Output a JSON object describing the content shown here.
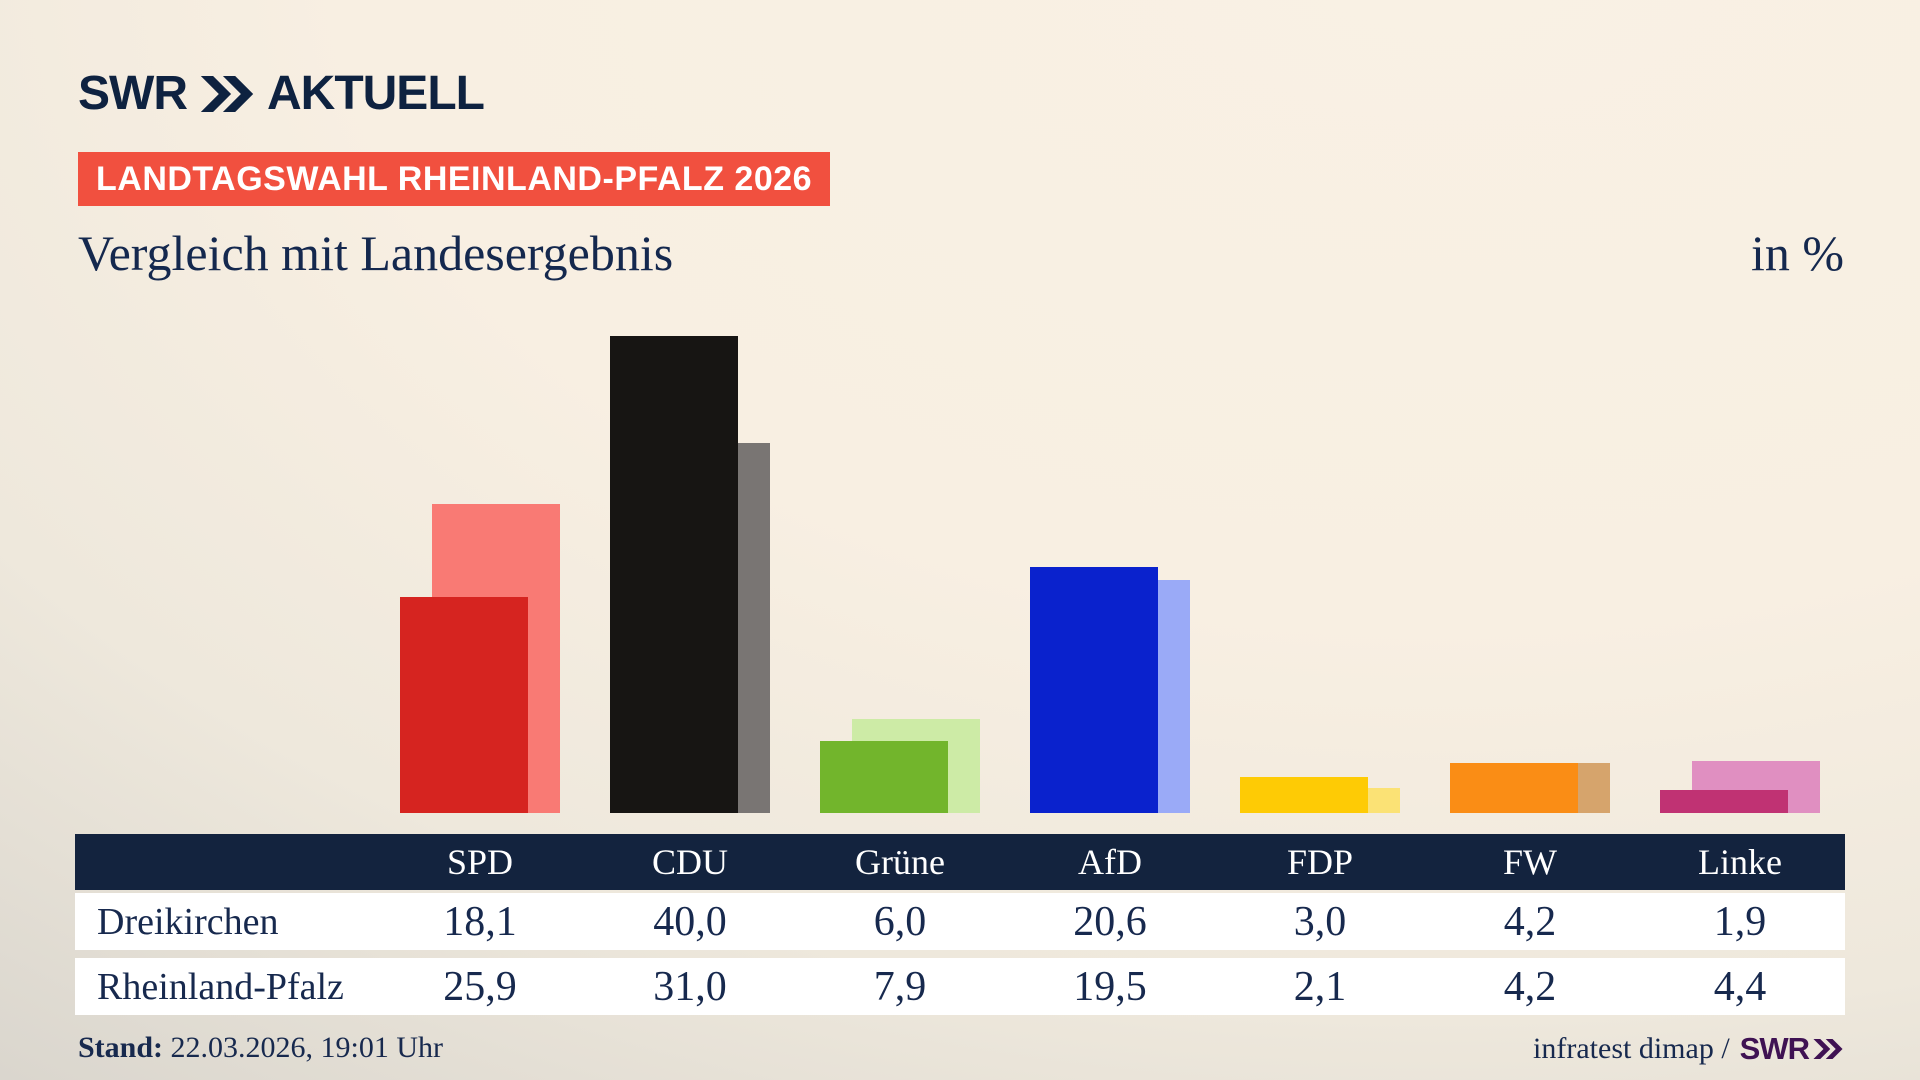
{
  "logo": {
    "swr": "SWR",
    "aktuell": "AKTUELL"
  },
  "header": {
    "badge": "LANDTAGSWAHL RHEINLAND-PFALZ 2026",
    "title": "Vergleich mit Landesergebnis",
    "unit": "in %"
  },
  "chart_data": {
    "type": "bar",
    "title": "Vergleich mit Landesergebnis",
    "unit": "in %",
    "grid": false,
    "axes_hidden": true,
    "categories": [
      "SPD",
      "CDU",
      "Grüne",
      "AfD",
      "FDP",
      "FW",
      "Linke"
    ],
    "series": [
      {
        "name": "Dreikirchen",
        "values": [
          18.1,
          40.0,
          6.0,
          20.6,
          3.0,
          4.2,
          1.9
        ],
        "style": "front-dark"
      },
      {
        "name": "Rheinland-Pfalz",
        "values": [
          25.9,
          31.0,
          7.9,
          19.5,
          2.1,
          4.2,
          4.4
        ],
        "style": "back-light"
      }
    ],
    "colors": [
      {
        "party": "SPD",
        "front": "#d62420",
        "back": "#f97a74"
      },
      {
        "party": "CDU",
        "front": "#171513",
        "back": "#797573"
      },
      {
        "party": "Grüne",
        "front": "#72b52c",
        "back": "#cdeba6"
      },
      {
        "party": "AfD",
        "front": "#0a22cd",
        "back": "#9aaaf7"
      },
      {
        "party": "FDP",
        "front": "#fecb05",
        "back": "#fbe275"
      },
      {
        "party": "FW",
        "front": "#fa8d15",
        "back": "#d6a46c"
      },
      {
        "party": "Linke",
        "front": "#c03273",
        "back": "#e08fc1"
      }
    ]
  },
  "table": {
    "columns": [
      "SPD",
      "CDU",
      "Grüne",
      "AfD",
      "FDP",
      "FW",
      "Linke"
    ],
    "rows": [
      {
        "label": "Dreikirchen",
        "values": [
          "18,1",
          "40,0",
          "6,0",
          "20,6",
          "3,0",
          "4,2",
          "1,9"
        ]
      },
      {
        "label": "Rheinland-Pfalz",
        "values": [
          "25,9",
          "31,0",
          "7,9",
          "19,5",
          "2,1",
          "4,2",
          "4,4"
        ]
      }
    ]
  },
  "footer": {
    "stand_label": "Stand:",
    "stand_value": " 22.03.2026, 19:01 Uhr",
    "credit": "infratest dimap /",
    "credit_brand": "SWR"
  },
  "colors": {
    "badge_red": "#f1503f",
    "navy_text": "#17294e",
    "table_header_navy": "#13233e",
    "credit_purple": "#3f1253",
    "background_beige": "#f8efe2"
  }
}
